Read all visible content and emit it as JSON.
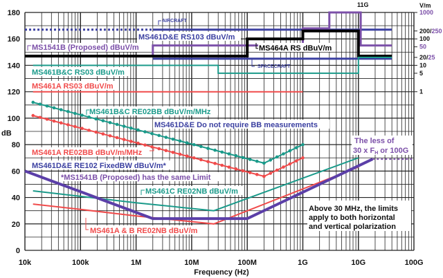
{
  "chart_data": {
    "type": "line",
    "xlabel": "Frequency (Hz)",
    "ylabel": "dB",
    "xscale": "log",
    "xlim": [
      10000,
      100000000000
    ],
    "ylim": [
      0,
      180
    ],
    "grid": true,
    "x_tick_labels": [
      "10k",
      "100k",
      "1M",
      "10M",
      "100M",
      "1G",
      "10G",
      "100G"
    ],
    "y_tick_values": [
      0,
      20,
      40,
      60,
      80,
      100,
      120,
      140,
      160,
      180
    ],
    "right_axis": {
      "title": "V/m",
      "labels": [
        {
          "text": "1000",
          "db": 180,
          "color": "#7b4fa8"
        },
        {
          "text": "200/",
          "text2": "250",
          "db": 166,
          "color": "#111111",
          "color2": "#7b4fa8"
        },
        {
          "text": "100",
          "db": 160,
          "color": "#111111"
        },
        {
          "text": "50",
          "db": 154,
          "color": "#7b4fa8"
        },
        {
          "text": "20/",
          "text2": "25",
          "db": 146,
          "color": "#111111",
          "color2": "#7b4fa8"
        },
        {
          "text": "10",
          "db": 140,
          "color": "#111111"
        },
        {
          "text": "5",
          "db": 134,
          "color": "#111111"
        },
        {
          "text": "1",
          "db": 120,
          "color": "#111111"
        }
      ]
    },
    "series": [
      {
        "name": "MS461D&E RS103 dBuV/m",
        "color": "#3a3fa0",
        "style": "solid",
        "width": 3,
        "x": [
          2000000,
          40000000000
        ],
        "y": [
          167,
          167
        ]
      },
      {
        "color": "#3a3fa0",
        "style": "dotted",
        "width": 3,
        "x": [
          10000,
          2000000
        ],
        "y": [
          167,
          167
        ]
      },
      {
        "color": "#3a3fa0",
        "style": "solid",
        "width": 3,
        "x": [
          2000000,
          40000000000
        ],
        "y": [
          145,
          145
        ]
      },
      {
        "name": "MS1541B (Proposed) dBuV/m",
        "color": "#7b4fa8",
        "style": "solid",
        "width": 3,
        "x": [
          10000,
          2000000,
          2000000,
          1000000000,
          1000000000,
          3000000000,
          3000000000,
          11000000000,
          11000000000,
          40000000000
        ],
        "y": [
          147,
          147,
          155,
          155,
          168,
          168,
          180,
          180,
          155,
          155
        ]
      },
      {
        "name": "MS464A RS dBuV/m",
        "color": "#000000",
        "style": "solid",
        "width": 4,
        "x": [
          10000,
          100000000,
          100000000,
          1000000000,
          1000000000,
          10000000000,
          10000000000,
          40000000000
        ],
        "y": [
          147,
          147,
          160,
          160,
          166,
          166,
          147,
          147
        ]
      },
      {
        "name": "MS461B&C RS03 dBuV/m",
        "color": "#1a9a8a",
        "style": "solid",
        "width": 2,
        "x": [
          14000,
          30000000,
          30000000,
          10000000000,
          10000000000,
          40000000000
        ],
        "y": [
          140,
          140,
          134,
          134,
          146,
          146
        ]
      },
      {
        "name": "MS461A RS03 dBuV/m",
        "color": "#f04b4b",
        "style": "solid",
        "width": 2,
        "x": [
          14000,
          1000000000
        ],
        "y": [
          120,
          120
        ]
      },
      {
        "name": "MS461B&C RE02BB dBuV/m/MHz",
        "color": "#1a9a8a",
        "style": "dotted-markers",
        "width": 2,
        "x": [
          14000,
          200000000,
          1000000000
        ],
        "y": [
          112,
          66,
          80
        ]
      },
      {
        "name": "MS461A RE02BB dBuV/m/MHz",
        "color": "#f04b4b",
        "style": "dotted-markers",
        "width": 2,
        "x": [
          14000,
          200000000,
          1000000000
        ],
        "y": [
          102,
          56,
          70
        ]
      },
      {
        "name": "MS461C RE02NB dBuV/m",
        "color": "#1a9a8a",
        "style": "solid",
        "width": 2,
        "x": [
          14000,
          1000000,
          25000000,
          10000000000
        ],
        "y": [
          45,
          36,
          30,
          70
        ]
      },
      {
        "name": "MS461A & B RE02NB dBuV/m",
        "color": "#f04b4b",
        "style": "solid",
        "width": 2,
        "x": [
          14000,
          100000,
          1000000,
          25000000,
          10000000000
        ],
        "y": [
          35,
          31,
          26,
          20,
          63
        ]
      },
      {
        "name": "MS461D&E RE102 FixedBW dBuV/m*",
        "color": "#5b3fa8",
        "style": "solid",
        "width": 4,
        "x": [
          10000,
          2000000,
          100000000,
          18000000000
        ],
        "y": [
          60,
          24,
          24,
          69
        ]
      },
      {
        "color": "#7b4fa8",
        "style": "dotted",
        "width": 2,
        "x": [
          18000000000,
          100000000000
        ],
        "y": [
          69,
          69
        ]
      }
    ],
    "annotations": {
      "aircraft": "AIRCRAFT",
      "spacecraft": "SPACECRAFT",
      "eleven_g": "11G",
      "rs103": "MS461D&E RS103 dBuV/m",
      "ms1541b": "MS1541B (Proposed) dBuV/m",
      "ms464a": "MS464A RS dBuV/m",
      "bc_rs03": "MS461B&C RS03 dBuV/m",
      "a_rs03": "MS461A RS03 dBuV/m",
      "bc_re02bb": "MS461B&C RE02BB dBuV/m/MHz",
      "de_no_bb": "MS461D&E Do not require BB measurements",
      "a_re02bb": "MS461A RE02BB dBuV/m/MHz",
      "de_re102": "MS461D&E RE102 FixedBW dBuV/m*",
      "ms1541b_same": "*MS1541B (Proposed) has the same Limit",
      "c_re02nb": "MS461C RE02NB dBuV/m",
      "ab_re02nb": "MS461A & B RE02NB dBuV/m",
      "less_of_1": "The less of",
      "less_of_2a": "30 x F",
      "less_of_sub": "H",
      "less_of_2b": " or 100G",
      "box_1": "Above 30 MHz, the limits",
      "box_2": "apply to both horizontal",
      "box_3": "and vertical polarization"
    }
  }
}
